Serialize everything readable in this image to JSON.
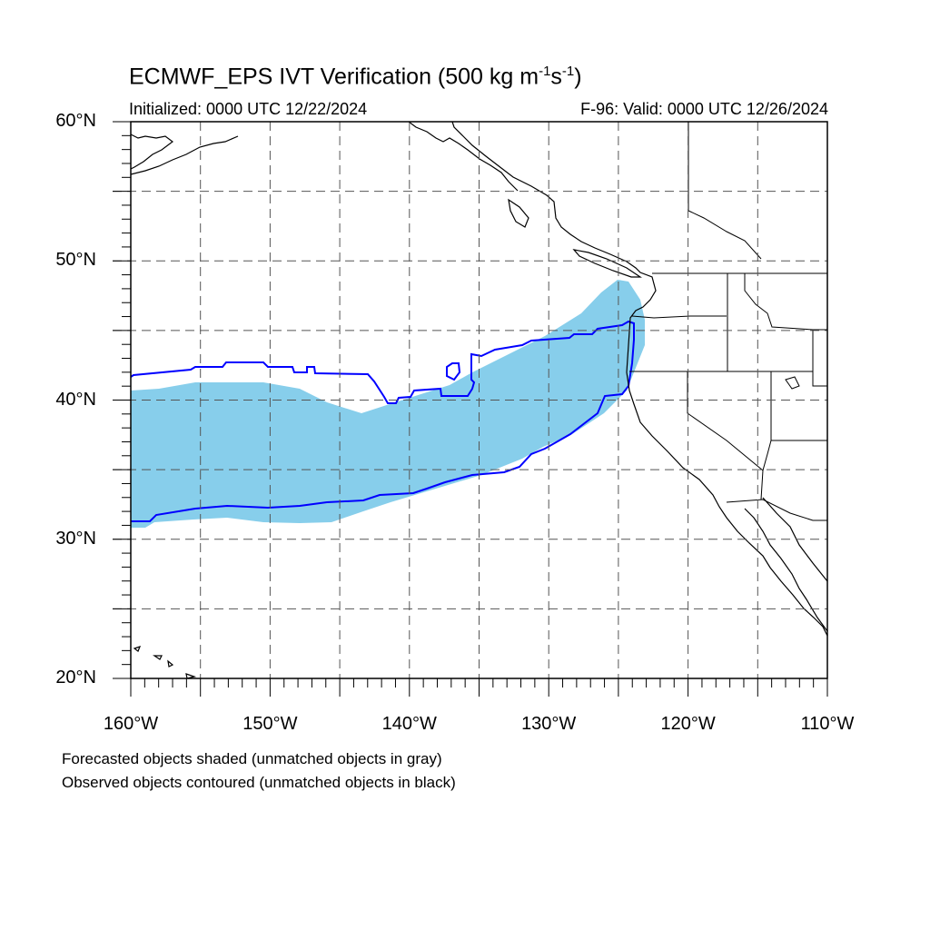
{
  "title": {
    "main": "ECMWF_EPS IVT Verification (500 kg m",
    "exp1": "-1",
    "mid": "s",
    "exp2": "-1",
    "close": ")"
  },
  "subtitle_left": "Initialized: 0000 UTC 12/22/2024",
  "subtitle_right": "F-96: Valid: 0000 UTC 12/26/2024",
  "lat_labels": [
    "60°N",
    "50°N",
    "40°N",
    "30°N",
    "20°N"
  ],
  "lon_labels": [
    "160°W",
    "150°W",
    "140°W",
    "130°W",
    "120°W",
    "110°W"
  ],
  "notes": {
    "line1": "Forecasted objects shaded (unmatched objects in gray)",
    "line2": "Observed objects contoured (unmatched objects in black)"
  },
  "map": {
    "projection": "cylindrical equidistant",
    "lon_range": [
      -160,
      -110
    ],
    "lat_range": [
      20,
      60
    ],
    "grid_lines": "dashed, every 5 degrees"
  },
  "colors": {
    "forecast_fill": "#87ceeb",
    "observed_contour": "#0000ff",
    "coastline": "#000000",
    "grid": "#555555"
  }
}
